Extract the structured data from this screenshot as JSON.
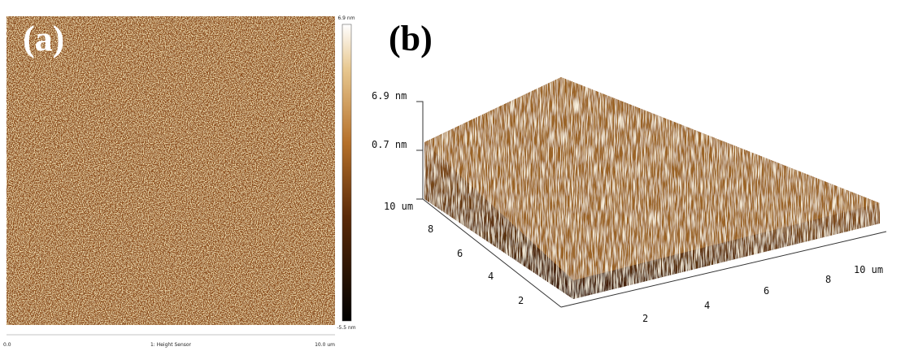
{
  "panel_a": {
    "label": "(a)",
    "colorbar": {
      "max": "6.9 nm",
      "min": "-5.5 nm"
    },
    "x_axis": {
      "start": "0.0",
      "title": "1: Height Sensor",
      "end": "10.0 um"
    }
  },
  "panel_b": {
    "label": "(b)",
    "z_axis": {
      "ticks": [
        "6.9 nm",
        "0.7 nm"
      ]
    },
    "y_axis": {
      "ticks": [
        "10 um",
        "8",
        "6",
        "4",
        "2"
      ]
    },
    "x_axis": {
      "ticks": [
        "2",
        "4",
        "6",
        "8",
        "10 um"
      ]
    }
  }
}
